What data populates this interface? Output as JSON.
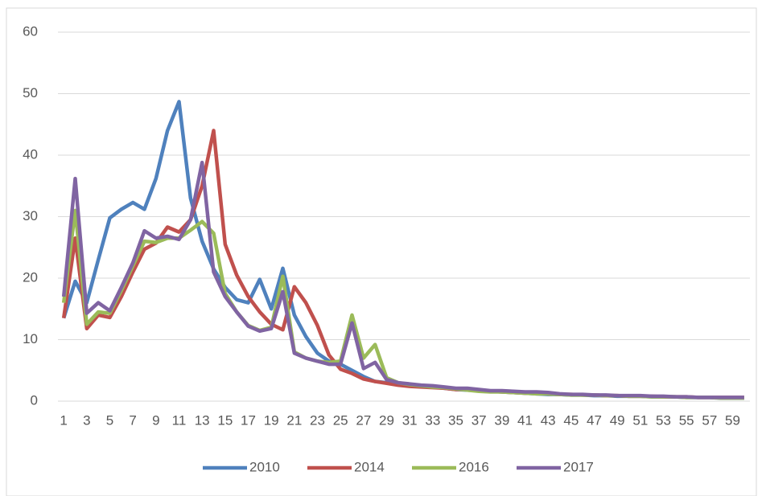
{
  "chart_data": {
    "type": "line",
    "categories": [
      "1",
      null,
      "3",
      null,
      "5",
      null,
      "7",
      null,
      "9",
      null,
      "11",
      null,
      "13",
      null,
      "15",
      null,
      "17",
      null,
      "19",
      null,
      "21",
      null,
      "23",
      null,
      "25",
      null,
      "27",
      null,
      "29",
      null,
      "31",
      null,
      "33",
      null,
      "35",
      null,
      "37",
      null,
      "39",
      null,
      "41",
      null,
      "43",
      null,
      "45",
      null,
      "47",
      null,
      "49",
      null,
      "51",
      null,
      "53",
      null,
      "55",
      null,
      "57",
      null,
      "59",
      null
    ],
    "series": [
      {
        "name": "2010",
        "color": "#4f81bd",
        "values": [
          13.5,
          19.5,
          16,
          23,
          29.8,
          31.2,
          32.3,
          31.2,
          36.2,
          44,
          48.7,
          33,
          26,
          21.5,
          18.5,
          16.5,
          16,
          19.8,
          15,
          21.6,
          14,
          10.5,
          7.8,
          6.5,
          6,
          5,
          4,
          3.2,
          3,
          2.7,
          2.5,
          2.4,
          2.3,
          2.1,
          1.9,
          1.8,
          1.7,
          1.6,
          1.5,
          1.4,
          1.3,
          1.2,
          1.1,
          1.1,
          1,
          1,
          0.9,
          0.9,
          0.8,
          0.8,
          0.8,
          0.7,
          0.7,
          0.7,
          0.6,
          0.6,
          0.6,
          0.5,
          0.5,
          0.5
        ]
      },
      {
        "name": "2014",
        "color": "#c0504d",
        "values": [
          13.5,
          26.5,
          11.8,
          14,
          13.6,
          17,
          21,
          24.7,
          25.7,
          28.3,
          27.5,
          29.5,
          35,
          44,
          25.5,
          20.5,
          17,
          14.5,
          12.5,
          11.6,
          18.6,
          16,
          12.3,
          7.5,
          5.2,
          4.5,
          3.6,
          3.2,
          2.9,
          2.6,
          2.4,
          2.3,
          2.2,
          2.1,
          1.9,
          1.9,
          1.7,
          1.6,
          1.5,
          1.4,
          1.3,
          1.3,
          1.2,
          1.1,
          1.1,
          1,
          1,
          0.9,
          0.9,
          0.8,
          0.8,
          0.8,
          0.7,
          0.7,
          0.7,
          0.6,
          0.6,
          0.6,
          0.6,
          0.6
        ]
      },
      {
        "name": "2016",
        "color": "#9bbb59",
        "values": [
          16,
          31,
          12.5,
          14.5,
          14.3,
          18,
          22,
          26,
          25.8,
          26.5,
          26.5,
          27.8,
          29.2,
          27.3,
          17.5,
          14.5,
          12.3,
          11.5,
          12,
          20.3,
          8,
          7,
          6.5,
          6.3,
          6.5,
          14,
          7,
          9.2,
          3.8,
          3,
          2.7,
          2.5,
          2.3,
          2.2,
          2,
          1.8,
          1.6,
          1.5,
          1.5,
          1.4,
          1.3,
          1.2,
          1.2,
          1.1,
          1,
          1,
          1,
          0.9,
          0.9,
          0.8,
          0.8,
          0.7,
          0.7,
          0.7,
          0.6,
          0.6,
          0.6,
          0.5,
          0.5,
          0.5
        ]
      },
      {
        "name": "2017",
        "color": "#8064a2",
        "values": [
          17,
          36.2,
          14.3,
          16,
          14.7,
          18.5,
          22.5,
          27.7,
          26.5,
          26.8,
          26.3,
          29.5,
          38.8,
          21,
          17,
          14.5,
          12.2,
          11.4,
          11.8,
          17.8,
          7.8,
          7,
          6.5,
          6,
          6,
          12.7,
          5.3,
          6.3,
          3.5,
          3,
          2.8,
          2.6,
          2.5,
          2.3,
          2.1,
          2.1,
          1.9,
          1.7,
          1.7,
          1.6,
          1.5,
          1.5,
          1.4,
          1.2,
          1.1,
          1.1,
          1,
          1,
          0.9,
          0.9,
          0.9,
          0.8,
          0.8,
          0.7,
          0.7,
          0.6,
          0.6,
          0.6,
          0.6,
          0.6
        ]
      }
    ],
    "ylim": [
      0,
      60
    ],
    "yticks": [
      0,
      10,
      20,
      30,
      40,
      50,
      60
    ],
    "grid": true,
    "legend": "bottom"
  }
}
